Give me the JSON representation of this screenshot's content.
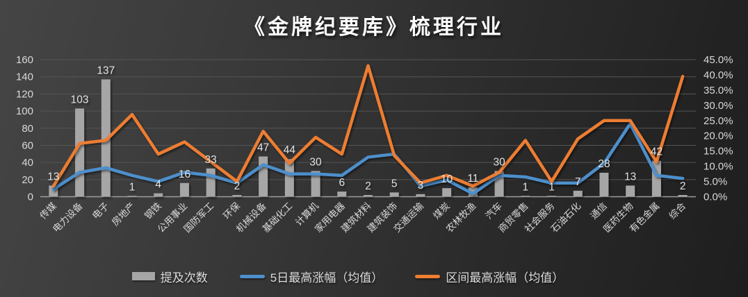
{
  "title": "《金牌纪要库》梳理行业",
  "theme": {
    "background_start": "#454545",
    "background_end": "#1e1e1e",
    "text_color": "#d9d9d9",
    "label_color": "#e0e0e0",
    "gridline_color": "#555555",
    "axis_line_color": "#9d9d9d"
  },
  "chart_data": {
    "type": "combo",
    "title": "《金牌纪要库》梳理行业",
    "grid": true,
    "legend_position": "bottom",
    "categories": [
      "传媒",
      "电力设备",
      "电子",
      "房地产",
      "钢铁",
      "公用事业",
      "国防军工",
      "环保",
      "机械设备",
      "基础化工",
      "计算机",
      "家用电器",
      "建筑材料",
      "建筑装饰",
      "交通运输",
      "煤炭",
      "农林牧渔",
      "汽车",
      "商贸零售",
      "社会服务",
      "石油石化",
      "通信",
      "医药生物",
      "有色金属",
      "综合"
    ],
    "series": [
      {
        "name": "提及次数",
        "type": "bar",
        "axis": "left",
        "color": "#a6a6a6",
        "values": [
          13,
          103,
          137,
          1,
          4,
          16,
          33,
          2,
          47,
          44,
          30,
          6,
          2,
          5,
          3,
          10,
          11,
          30,
          1,
          1,
          7,
          28,
          13,
          42,
          2
        ]
      },
      {
        "name": "5日最高涨幅（均值）",
        "type": "line",
        "axis": "right",
        "unit": "%",
        "color": "#4e8fcc",
        "values": [
          2.5,
          8,
          9.5,
          7,
          5,
          8,
          7,
          4.5,
          10.5,
          7.5,
          7.5,
          7,
          13,
          14,
          3.5,
          5.5,
          1,
          7,
          6.5,
          4.5,
          4.5,
          11,
          24,
          7,
          6
        ]
      },
      {
        "name": "区间最高涨幅（均值）",
        "type": "line",
        "axis": "right",
        "unit": "%",
        "color": "#ed7d31",
        "values": [
          3.5,
          17.5,
          18.5,
          27,
          14,
          18,
          11.5,
          5,
          21.5,
          11,
          19.5,
          14,
          43,
          13.5,
          4.5,
          7,
          3.5,
          8,
          18.5,
          5,
          19,
          25,
          25,
          11.5,
          39.5
        ]
      }
    ],
    "left_axis": {
      "min": 0,
      "max": 160,
      "step": 20,
      "ticks": [
        "0",
        "20",
        "40",
        "60",
        "80",
        "100",
        "120",
        "140",
        "160"
      ]
    },
    "right_axis": {
      "min": 0,
      "max": 45,
      "step": 5,
      "ticks": [
        "0.0%",
        "5.0%",
        "10.0%",
        "15.0%",
        "20.0%",
        "25.0%",
        "30.0%",
        "35.0%",
        "40.0%",
        "45.0%"
      ]
    }
  },
  "legend": {
    "items": [
      "提及次数",
      "5日最高涨幅（均值）",
      "区间最高涨幅（均值）"
    ]
  }
}
